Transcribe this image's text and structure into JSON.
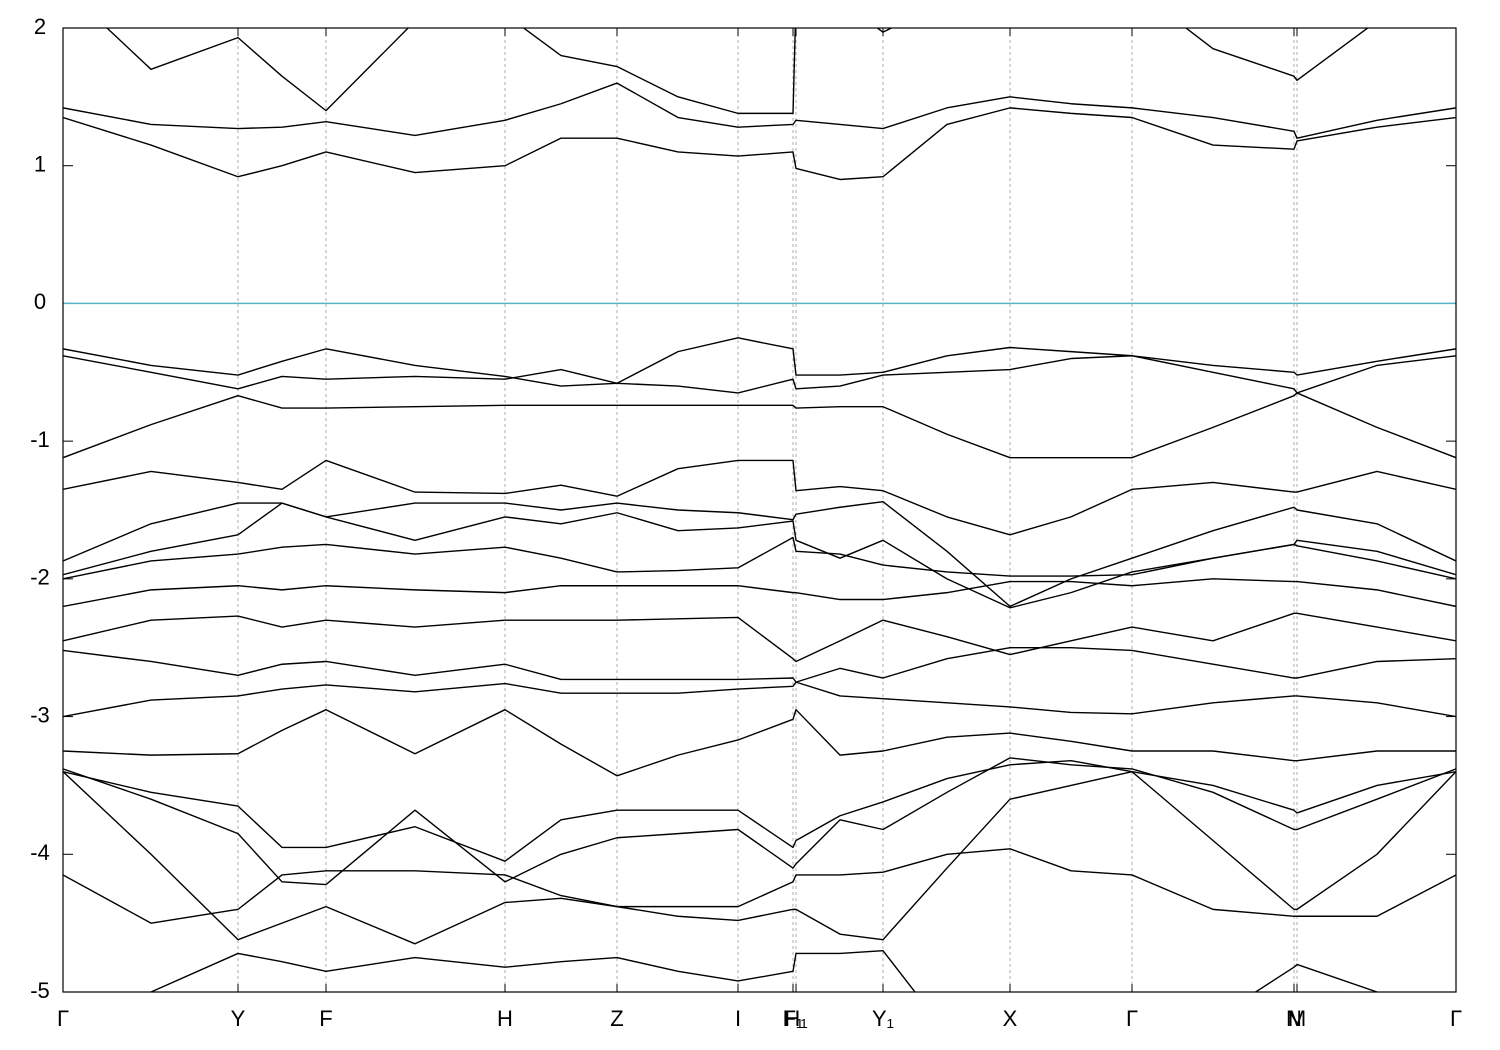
{
  "chart_data": {
    "type": "line",
    "x": [
      0,
      0.088,
      0.175,
      0.219,
      0.263,
      0.352,
      0.442,
      0.498,
      0.554,
      0.615,
      0.675,
      0.73,
      0.733,
      0.777,
      0.82,
      0.884,
      0.947,
      1.008,
      1.069,
      1.15,
      1.231,
      1.234,
      1.314,
      1.393
    ],
    "xlim": [
      0,
      1.393
    ],
    "xticks": [
      {
        "value": 0,
        "label": "Γ"
      },
      {
        "value": 0.175,
        "label": "Y"
      },
      {
        "value": 0.263,
        "label": "F"
      },
      {
        "value": 0.442,
        "label": "H"
      },
      {
        "value": 0.554,
        "label": "Z"
      },
      {
        "value": 0.675,
        "label": "I"
      },
      {
        "value": 0.73,
        "label": "F₁"
      },
      {
        "value": 0.733,
        "label": "H₁"
      },
      {
        "value": 0.82,
        "label": "Y₁"
      },
      {
        "value": 0.947,
        "label": "X"
      },
      {
        "value": 1.069,
        "label": "Γ"
      },
      {
        "value": 1.231,
        "label": "N"
      },
      {
        "value": 1.234,
        "label": "M"
      },
      {
        "value": 1.393,
        "label": "Γ"
      }
    ],
    "ylim": [
      -5,
      2
    ],
    "yticks": [
      -5,
      -4,
      -3,
      -2,
      -1,
      0,
      1,
      2
    ],
    "grid": true,
    "color": "#000000",
    "hline": {
      "value": 0,
      "color": "#5ab4c8"
    },
    "series": [
      {
        "values": [
          -0.33,
          -0.45,
          -0.52,
          -0.42,
          -0.33,
          -0.45,
          -0.53,
          -0.6,
          -0.58,
          -0.35,
          -0.25,
          -0.33,
          -0.52,
          -0.52,
          -0.5,
          -0.38,
          -0.32,
          -0.35,
          -0.38,
          -0.45,
          -0.5,
          -0.52,
          -0.42,
          -0.33
        ]
      },
      {
        "values": [
          -0.38,
          -0.5,
          -0.62,
          -0.53,
          -0.55,
          -0.53,
          -0.55,
          -0.48,
          -0.58,
          -0.6,
          -0.65,
          -0.55,
          -0.62,
          -0.6,
          -0.52,
          -0.5,
          -0.48,
          -0.4,
          -0.38,
          -0.5,
          -0.62,
          -0.65,
          -0.45,
          -0.38
        ]
      },
      {
        "values": [
          -1.12,
          -0.88,
          -0.67,
          -0.76,
          -0.76,
          -0.75,
          -0.74,
          -0.74,
          -0.74,
          -0.74,
          -0.74,
          -0.74,
          -0.76,
          -0.75,
          -0.75,
          -0.95,
          -1.12,
          -1.12,
          -1.12,
          -0.9,
          -0.67,
          -0.65,
          -0.9,
          -1.12
        ]
      },
      {
        "values": [
          -1.35,
          -1.22,
          -1.3,
          -1.35,
          -1.14,
          -1.37,
          -1.38,
          -1.32,
          -1.4,
          -1.2,
          -1.14,
          -1.14,
          -1.36,
          -1.33,
          -1.36,
          -1.55,
          -1.68,
          -1.55,
          -1.35,
          -1.3,
          -1.37,
          -1.37,
          -1.22,
          -1.35
        ]
      },
      {
        "values": [
          -1.87,
          -1.6,
          -1.45,
          -1.45,
          -1.55,
          -1.45,
          -1.45,
          -1.5,
          -1.45,
          -1.5,
          -1.52,
          -1.57,
          -1.53,
          -1.48,
          -1.44,
          -1.8,
          -2.2,
          -2.0,
          -1.85,
          -1.65,
          -1.48,
          -1.5,
          -1.6,
          -1.87
        ]
      },
      {
        "values": [
          -1.97,
          -1.8,
          -1.68,
          -1.45,
          -1.55,
          -1.72,
          -1.55,
          -1.6,
          -1.52,
          -1.65,
          -1.63,
          -1.58,
          -1.72,
          -1.85,
          -1.72,
          -2.0,
          -2.21,
          -2.1,
          -1.95,
          -1.85,
          -1.75,
          -1.72,
          -1.8,
          -1.97
        ]
      },
      {
        "values": [
          -2.0,
          -1.87,
          -1.82,
          -1.77,
          -1.75,
          -1.82,
          -1.77,
          -1.85,
          -1.95,
          -1.94,
          -1.92,
          -1.7,
          -1.8,
          -1.82,
          -1.9,
          -1.95,
          -1.98,
          -1.98,
          -1.97,
          -1.85,
          -1.75,
          -1.76,
          -1.87,
          -2.0
        ]
      },
      {
        "values": [
          -2.2,
          -2.08,
          -2.05,
          -2.08,
          -2.05,
          -2.08,
          -2.1,
          -2.05,
          -2.05,
          -2.05,
          -2.05,
          -2.1,
          -2.1,
          -2.15,
          -2.15,
          -2.1,
          -2.02,
          -2.02,
          -2.05,
          -2.0,
          -2.02,
          -2.02,
          -2.08,
          -2.2
        ]
      },
      {
        "values": [
          -2.45,
          -2.3,
          -2.27,
          -2.35,
          -2.3,
          -2.35,
          -2.3,
          -2.3,
          -2.3,
          -2.29,
          -2.28,
          -2.58,
          -2.6,
          -2.45,
          -2.3,
          -2.42,
          -2.55,
          -2.45,
          -2.35,
          -2.45,
          -2.25,
          -2.25,
          -2.35,
          -2.45
        ]
      },
      {
        "values": [
          -2.52,
          -2.6,
          -2.7,
          -2.62,
          -2.6,
          -2.7,
          -2.62,
          -2.73,
          -2.73,
          -2.73,
          -2.73,
          -2.72,
          -2.75,
          -2.65,
          -2.72,
          -2.58,
          -2.5,
          -2.5,
          -2.52,
          -2.62,
          -2.72,
          -2.72,
          -2.6,
          -2.58
        ]
      },
      {
        "values": [
          -3.0,
          -2.88,
          -2.85,
          -2.8,
          -2.77,
          -2.82,
          -2.76,
          -2.83,
          -2.83,
          -2.83,
          -2.8,
          -2.78,
          -2.75,
          -2.85,
          -2.87,
          -2.9,
          -2.93,
          -2.97,
          -2.98,
          -2.9,
          -2.85,
          -2.85,
          -2.9,
          -3.0
        ]
      },
      {
        "values": [
          -3.25,
          -3.28,
          -3.27,
          -3.1,
          -2.95,
          -3.27,
          -2.95,
          -3.2,
          -3.43,
          -3.28,
          -3.17,
          -3.02,
          -2.95,
          -3.28,
          -3.25,
          -3.15,
          -3.12,
          -3.18,
          -3.25,
          -3.25,
          -3.32,
          -3.32,
          -3.25,
          -3.25
        ]
      },
      {
        "values": [
          -3.4,
          -3.55,
          -3.65,
          -3.95,
          -3.95,
          -3.8,
          -4.05,
          -3.75,
          -3.68,
          -3.68,
          -3.68,
          -3.95,
          -3.9,
          -3.72,
          -3.62,
          -3.45,
          -3.35,
          -3.32,
          -3.4,
          -3.5,
          -3.68,
          -3.7,
          -3.5,
          -3.4
        ]
      },
      {
        "values": [
          -3.38,
          -3.6,
          -3.85,
          -4.2,
          -4.22,
          -3.68,
          -4.2,
          -4.0,
          -3.88,
          -3.85,
          -3.82,
          -4.1,
          -4.07,
          -3.75,
          -3.82,
          -3.55,
          -3.3,
          -3.35,
          -3.38,
          -3.55,
          -3.82,
          -3.82,
          -3.6,
          -3.38
        ]
      },
      {
        "values": [
          -3.4,
          -4.0,
          -4.62,
          -4.5,
          -4.38,
          -4.65,
          -4.35,
          -4.32,
          -4.38,
          -4.45,
          -4.48,
          -4.4,
          -4.4,
          -4.58,
          -4.62,
          -4.1,
          -3.6,
          -3.5,
          -3.4,
          -3.9,
          -4.4,
          -4.4,
          -4.0,
          -3.4
        ]
      },
      {
        "values": [
          -4.15,
          -4.5,
          -4.4,
          -4.15,
          -4.12,
          -4.12,
          -4.15,
          -4.3,
          -4.38,
          -4.38,
          -4.38,
          -4.2,
          -4.15,
          -4.15,
          -4.13,
          -4.0,
          -3.96,
          -4.12,
          -4.15,
          -4.4,
          -4.45,
          -4.45,
          -4.45,
          -4.15
        ]
      },
      {
        "values": [
          -5.5,
          -5.0,
          -4.72,
          -4.78,
          -4.85,
          -4.75,
          -4.82,
          -4.78,
          -4.75,
          -4.85,
          -4.92,
          -4.85,
          -4.72,
          -4.72,
          -4.7,
          -5.3,
          -5.5,
          -5.5,
          -5.5,
          -5.2,
          -4.82,
          -4.8,
          -5.0,
          -5.5
        ]
      },
      {
        "values": [
          1.35,
          1.15,
          0.92,
          1.0,
          1.1,
          0.95,
          1.0,
          1.2,
          1.2,
          1.1,
          1.07,
          1.1,
          0.98,
          0.9,
          0.92,
          1.3,
          1.42,
          1.38,
          1.35,
          1.15,
          1.12,
          1.18,
          1.28,
          1.35
        ]
      },
      {
        "values": [
          1.42,
          1.3,
          1.27,
          1.28,
          1.32,
          1.22,
          1.33,
          1.45,
          1.6,
          1.35,
          1.28,
          1.3,
          1.33,
          1.3,
          1.27,
          1.42,
          1.5,
          1.45,
          1.42,
          1.35,
          1.25,
          1.2,
          1.33,
          1.42
        ]
      },
      {
        "values": [
          2.3,
          1.7,
          1.93,
          1.65,
          1.4,
          2.05,
          2.1,
          1.8,
          1.72,
          1.5,
          1.38,
          1.38,
          2.2,
          2.2,
          1.97,
          2.2,
          2.3,
          2.3,
          2.3,
          1.85,
          1.65,
          1.62,
          2.05,
          2.3
        ]
      }
    ]
  }
}
